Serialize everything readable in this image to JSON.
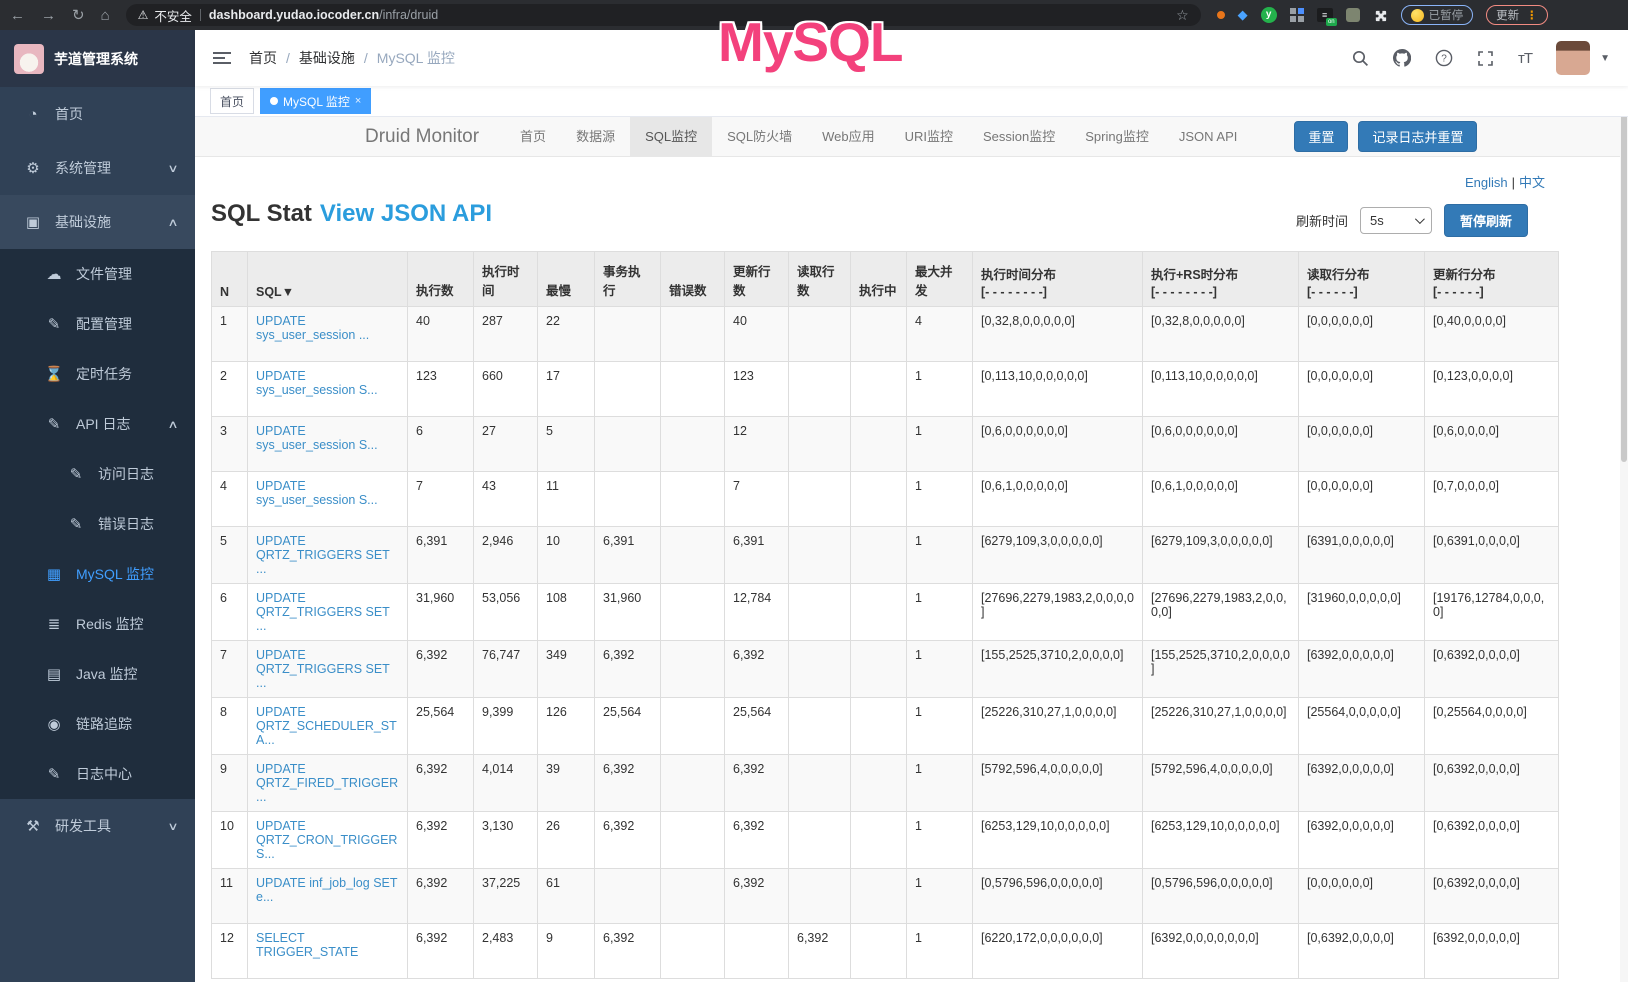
{
  "browser": {
    "security_label": "不安全",
    "url_host": "dashboard.yudao.iocoder.cn",
    "url_path": "/infra/druid",
    "paused_pill": "已暂停",
    "update_label": "更新"
  },
  "overlay": {
    "text": "MySQL",
    "color": "#f3417c"
  },
  "app": {
    "logo_title": "芋道管理系统",
    "breadcrumb": [
      {
        "label": "首页",
        "muted": false
      },
      {
        "label": "基础设施",
        "muted": false
      },
      {
        "label": "MySQL 监控",
        "muted": true
      }
    ],
    "tags": [
      {
        "label": "首页",
        "active": false,
        "closable": false
      },
      {
        "label": "MySQL 监控",
        "active": true,
        "closable": true
      }
    ]
  },
  "sidebar": {
    "items": [
      {
        "key": "home",
        "label": "首页",
        "icon": "dashboard-icon",
        "level": 0
      },
      {
        "key": "system-management",
        "label": "系统管理",
        "icon": "gear-icon",
        "level": 0,
        "chevron": "down"
      },
      {
        "key": "infrastructure",
        "label": "基础设施",
        "icon": "infrastructure-icon",
        "level": 0,
        "chevron": "up",
        "highlight": true
      },
      {
        "key": "file-management",
        "label": "文件管理",
        "icon": "cloud-upload-icon",
        "level": 1,
        "sub": true
      },
      {
        "key": "config-management",
        "label": "配置管理",
        "icon": "config-edit-icon",
        "level": 1,
        "sub": true
      },
      {
        "key": "scheduled-tasks",
        "label": "定时任务",
        "icon": "timer-icon",
        "level": 1,
        "sub": true
      },
      {
        "key": "api-logs",
        "label": "API 日志",
        "icon": "api-log-icon",
        "level": 1,
        "sub": true,
        "chevron": "up"
      },
      {
        "key": "access-logs",
        "label": "访问日志",
        "icon": "access-log-icon",
        "level": 2,
        "sub": true
      },
      {
        "key": "error-logs",
        "label": "错误日志",
        "icon": "error-log-icon",
        "level": 2,
        "sub": true
      },
      {
        "key": "mysql-monitor",
        "label": "MySQL 监控",
        "icon": "mysql-monitor-icon",
        "level": 1,
        "sub": true,
        "active": true
      },
      {
        "key": "redis-monitor",
        "label": "Redis 监控",
        "icon": "redis-monitor-icon",
        "level": 1,
        "sub": true
      },
      {
        "key": "java-monitor",
        "label": "Java 监控",
        "icon": "java-monitor-icon",
        "level": 1,
        "sub": true
      },
      {
        "key": "trace",
        "label": "链路追踪",
        "icon": "trace-eye-icon",
        "level": 1,
        "sub": true
      },
      {
        "key": "log-center",
        "label": "日志中心",
        "icon": "log-center-icon",
        "level": 1,
        "sub": true
      },
      {
        "key": "dev-tools",
        "label": "研发工具",
        "icon": "dev-tools-icon",
        "level": 0,
        "chevron": "down"
      }
    ]
  },
  "druid": {
    "brand": "Druid Monitor",
    "nav": [
      {
        "key": "home",
        "label": "首页",
        "active": false
      },
      {
        "key": "datasource",
        "label": "数据源",
        "active": false
      },
      {
        "key": "sql-monitor",
        "label": "SQL监控",
        "active": true
      },
      {
        "key": "sql-firewall",
        "label": "SQL防火墙",
        "active": false
      },
      {
        "key": "web-app",
        "label": "Web应用",
        "active": false
      },
      {
        "key": "uri-monitor",
        "label": "URI监控",
        "active": false
      },
      {
        "key": "session-monitor",
        "label": "Session监控",
        "active": false
      },
      {
        "key": "spring-monitor",
        "label": "Spring监控",
        "active": false
      },
      {
        "key": "json-api",
        "label": "JSON API",
        "active": false
      }
    ],
    "reset_button": "重置",
    "log_reset_button": "记录日志并重置",
    "lang_en": "English",
    "lang_zh": "中文",
    "page_title": "SQL Stat",
    "json_api_link": "View JSON API",
    "refresh_label": "刷新时间",
    "refresh_value": "5s",
    "pause_button": "暂停刷新"
  },
  "table": {
    "headers": [
      {
        "key": "n",
        "label": "N"
      },
      {
        "key": "sql",
        "label": "SQL",
        "sort": "▼"
      },
      {
        "key": "exec-count",
        "label": "执行数"
      },
      {
        "key": "exec-time",
        "label": "执行时间"
      },
      {
        "key": "slowest",
        "label": "最慢"
      },
      {
        "key": "tx-exec",
        "label": "事务执行"
      },
      {
        "key": "error-count",
        "label": "错误数"
      },
      {
        "key": "update-rows",
        "label": "更新行数"
      },
      {
        "key": "read-rows",
        "label": "读取行数"
      },
      {
        "key": "running",
        "label": "执行中"
      },
      {
        "key": "max-concurrent",
        "label": "最大并发"
      },
      {
        "key": "exec-time-dist",
        "label": "执行时间分布",
        "sub": "[- - - - - - - -]"
      },
      {
        "key": "exec-rs-dist",
        "label": "执行+RS时分布",
        "sub": "[- - - - - - - -]"
      },
      {
        "key": "read-row-dist",
        "label": "读取行分布",
        "sub": "[- - - - - -]"
      },
      {
        "key": "update-row-dist",
        "label": "更新行分布",
        "sub": "[- - - - - -]"
      }
    ],
    "rows": [
      {
        "n": "1",
        "sql": "UPDATE sys_user_session ...",
        "exec_count": "40",
        "exec_time": "287",
        "slowest": "22",
        "tx_exec": "",
        "error_count": "",
        "update_rows": "40",
        "read_rows": "",
        "running": "",
        "max_concurrent": "4",
        "exec_time_dist": "[0,32,8,0,0,0,0,0]",
        "exec_rs_dist": "[0,32,8,0,0,0,0,0]",
        "read_row_dist": "[0,0,0,0,0,0]",
        "update_row_dist": "[0,40,0,0,0,0]"
      },
      {
        "n": "2",
        "sql": "UPDATE sys_user_session S...",
        "exec_count": "123",
        "exec_time": "660",
        "slowest": "17",
        "tx_exec": "",
        "error_count": "",
        "update_rows": "123",
        "read_rows": "",
        "running": "",
        "max_concurrent": "1",
        "exec_time_dist": "[0,113,10,0,0,0,0,0]",
        "exec_rs_dist": "[0,113,10,0,0,0,0,0]",
        "read_row_dist": "[0,0,0,0,0,0]",
        "update_row_dist": "[0,123,0,0,0,0]"
      },
      {
        "n": "3",
        "sql": "UPDATE sys_user_session S...",
        "exec_count": "6",
        "exec_time": "27",
        "slowest": "5",
        "tx_exec": "",
        "error_count": "",
        "update_rows": "12",
        "read_rows": "",
        "running": "",
        "max_concurrent": "1",
        "exec_time_dist": "[0,6,0,0,0,0,0,0]",
        "exec_rs_dist": "[0,6,0,0,0,0,0,0]",
        "read_row_dist": "[0,0,0,0,0,0]",
        "update_row_dist": "[0,6,0,0,0,0]"
      },
      {
        "n": "4",
        "sql": "UPDATE sys_user_session S...",
        "exec_count": "7",
        "exec_time": "43",
        "slowest": "11",
        "tx_exec": "",
        "error_count": "",
        "update_rows": "7",
        "read_rows": "",
        "running": "",
        "max_concurrent": "1",
        "exec_time_dist": "[0,6,1,0,0,0,0,0]",
        "exec_rs_dist": "[0,6,1,0,0,0,0,0]",
        "read_row_dist": "[0,0,0,0,0,0]",
        "update_row_dist": "[0,7,0,0,0,0]"
      },
      {
        "n": "5",
        "sql": "UPDATE QRTZ_TRIGGERS SET ...",
        "exec_count": "6,391",
        "exec_time": "2,946",
        "slowest": "10",
        "tx_exec": "6,391",
        "error_count": "",
        "update_rows": "6,391",
        "read_rows": "",
        "running": "",
        "max_concurrent": "1",
        "exec_time_dist": "[6279,109,3,0,0,0,0,0]",
        "exec_rs_dist": "[6279,109,3,0,0,0,0,0]",
        "read_row_dist": "[6391,0,0,0,0,0]",
        "update_row_dist": "[0,6391,0,0,0,0]"
      },
      {
        "n": "6",
        "sql": "UPDATE QRTZ_TRIGGERS SET ...",
        "exec_count": "31,960",
        "exec_time": "53,056",
        "slowest": "108",
        "tx_exec": "31,960",
        "error_count": "",
        "update_rows": "12,784",
        "read_rows": "",
        "running": "",
        "max_concurrent": "1",
        "exec_time_dist": "[27696,2279,1983,2,0,0,0,0]",
        "exec_rs_dist": "[27696,2279,1983,2,0,0,0,0]",
        "read_row_dist": "[31960,0,0,0,0,0]",
        "update_row_dist": "[19176,12784,0,0,0,0]"
      },
      {
        "n": "7",
        "sql": "UPDATE QRTZ_TRIGGERS SET ...",
        "exec_count": "6,392",
        "exec_time": "76,747",
        "slowest": "349",
        "tx_exec": "6,392",
        "error_count": "",
        "update_rows": "6,392",
        "read_rows": "",
        "running": "",
        "max_concurrent": "1",
        "exec_time_dist": "[155,2525,3710,2,0,0,0,0]",
        "exec_rs_dist": "[155,2525,3710,2,0,0,0,0]",
        "read_row_dist": "[6392,0,0,0,0,0]",
        "update_row_dist": "[0,6392,0,0,0,0]"
      },
      {
        "n": "8",
        "sql": "UPDATE QRTZ_SCHEDULER_STA...",
        "exec_count": "25,564",
        "exec_time": "9,399",
        "slowest": "126",
        "tx_exec": "25,564",
        "error_count": "",
        "update_rows": "25,564",
        "read_rows": "",
        "running": "",
        "max_concurrent": "1",
        "exec_time_dist": "[25226,310,27,1,0,0,0,0]",
        "exec_rs_dist": "[25226,310,27,1,0,0,0,0]",
        "read_row_dist": "[25564,0,0,0,0,0]",
        "update_row_dist": "[0,25564,0,0,0,0]"
      },
      {
        "n": "9",
        "sql": "UPDATE QRTZ_FIRED_TRIGGER...",
        "exec_count": "6,392",
        "exec_time": "4,014",
        "slowest": "39",
        "tx_exec": "6,392",
        "error_count": "",
        "update_rows": "6,392",
        "read_rows": "",
        "running": "",
        "max_concurrent": "1",
        "exec_time_dist": "[5792,596,4,0,0,0,0,0]",
        "exec_rs_dist": "[5792,596,4,0,0,0,0,0]",
        "read_row_dist": "[6392,0,0,0,0,0]",
        "update_row_dist": "[0,6392,0,0,0,0]"
      },
      {
        "n": "10",
        "sql": "UPDATE QRTZ_CRON_TRIGGERS...",
        "exec_count": "6,392",
        "exec_time": "3,130",
        "slowest": "26",
        "tx_exec": "6,392",
        "error_count": "",
        "update_rows": "6,392",
        "read_rows": "",
        "running": "",
        "max_concurrent": "1",
        "exec_time_dist": "[6253,129,10,0,0,0,0,0]",
        "exec_rs_dist": "[6253,129,10,0,0,0,0,0]",
        "read_row_dist": "[6392,0,0,0,0,0]",
        "update_row_dist": "[0,6392,0,0,0,0]"
      },
      {
        "n": "11",
        "sql": "UPDATE inf_job_log SET e...",
        "exec_count": "6,392",
        "exec_time": "37,225",
        "slowest": "61",
        "tx_exec": "",
        "error_count": "",
        "update_rows": "6,392",
        "read_rows": "",
        "running": "",
        "max_concurrent": "1",
        "exec_time_dist": "[0,5796,596,0,0,0,0,0]",
        "exec_rs_dist": "[0,5796,596,0,0,0,0,0]",
        "read_row_dist": "[0,0,0,0,0,0]",
        "update_row_dist": "[0,6392,0,0,0,0]"
      },
      {
        "n": "12",
        "sql": "SELECT TRIGGER_STATE",
        "exec_count": "6,392",
        "exec_time": "2,483",
        "slowest": "9",
        "tx_exec": "6,392",
        "error_count": "",
        "update_rows": "",
        "read_rows": "6,392",
        "running": "",
        "max_concurrent": "1",
        "exec_time_dist": "[6220,172,0,0,0,0,0,0]",
        "exec_rs_dist": "[6392,0,0,0,0,0,0,0]",
        "read_row_dist": "[0,6392,0,0,0,0]",
        "update_row_dist": "[6392,0,0,0,0,0]"
      }
    ]
  }
}
